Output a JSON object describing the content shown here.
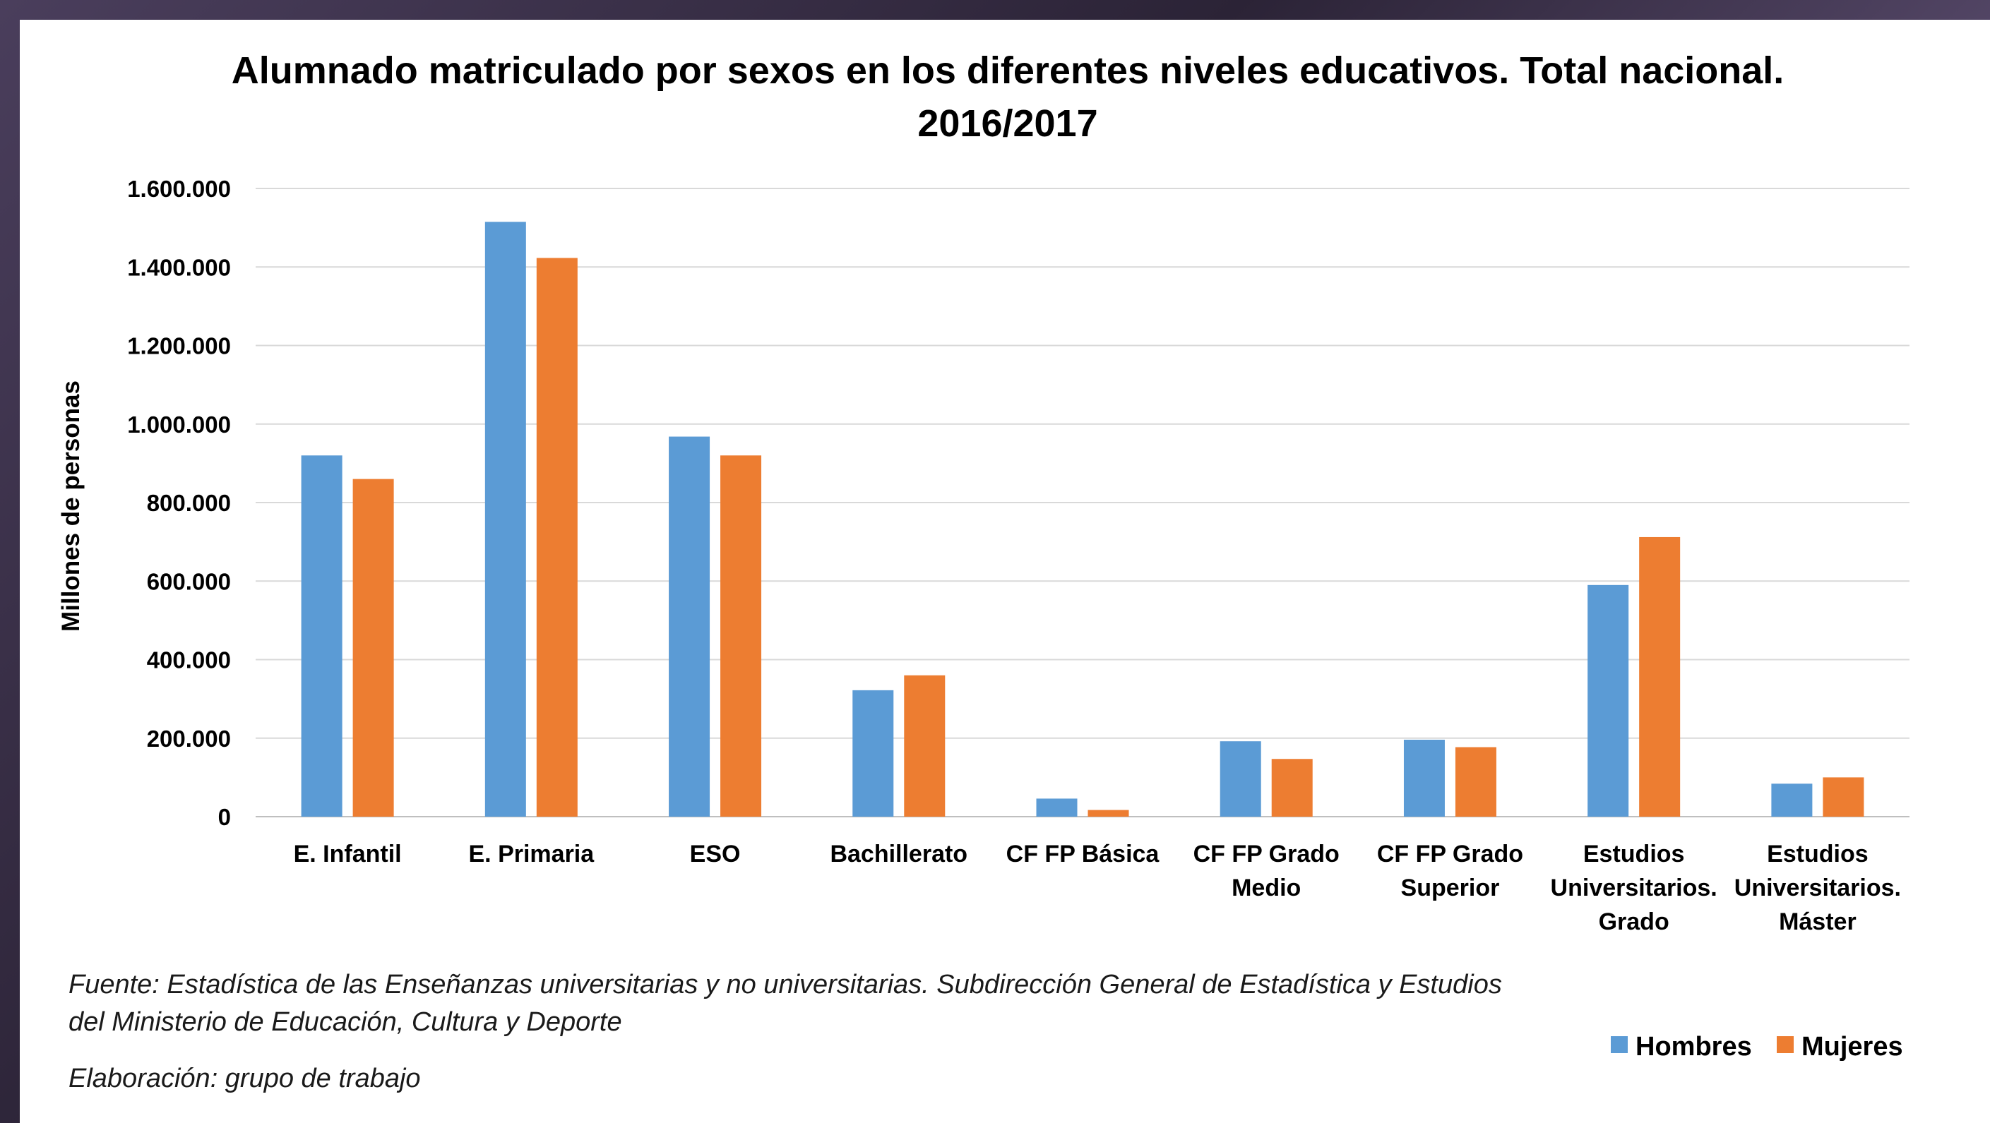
{
  "chart_data": {
    "type": "bar",
    "title_lines": [
      "Alumnado matriculado por sexos en los diferentes niveles educativos. Total nacional.",
      "2016/2017"
    ],
    "ylabel": "Millones de personas",
    "xlabel": "",
    "ylim": [
      0,
      1600000
    ],
    "yticks": [
      0,
      200000,
      400000,
      600000,
      800000,
      1000000,
      1200000,
      1400000,
      1600000
    ],
    "ytick_labels": [
      "0",
      "200.000",
      "400.000",
      "600.000",
      "800.000",
      "1.000.000",
      "1.200.000",
      "1.400.000",
      "1.600.000"
    ],
    "grid": true,
    "legend_position": "bottom-right",
    "categories": [
      [
        "E. Infantil"
      ],
      [
        "E. Primaria"
      ],
      [
        "ESO"
      ],
      [
        "Bachillerato"
      ],
      [
        "CF FP Básica"
      ],
      [
        "CF FP Grado",
        "Medio"
      ],
      [
        "CF FP Grado",
        "Superior"
      ],
      [
        "Estudios",
        "Universitarios.",
        "Grado"
      ],
      [
        "Estudios",
        "Universitarios.",
        "Máster"
      ]
    ],
    "series": [
      {
        "name": "Hombres",
        "color": "#5b9bd5",
        "values": [
          920000,
          1515000,
          968000,
          322000,
          46000,
          192000,
          196000,
          590000,
          84000
        ]
      },
      {
        "name": "Mujeres",
        "color": "#ed7d31",
        "values": [
          860000,
          1423000,
          920000,
          360000,
          17000,
          147000,
          177000,
          712000,
          100000
        ]
      }
    ]
  },
  "notes": {
    "source_line1": "Fuente: Estadística de las Enseñanzas universitarias y no universitarias. Subdirección General de Estadística y Estudios",
    "source_line2": "del Ministerio de Educación, Cultura y Deporte",
    "elaboration": "Elaboración: grupo de trabajo"
  }
}
